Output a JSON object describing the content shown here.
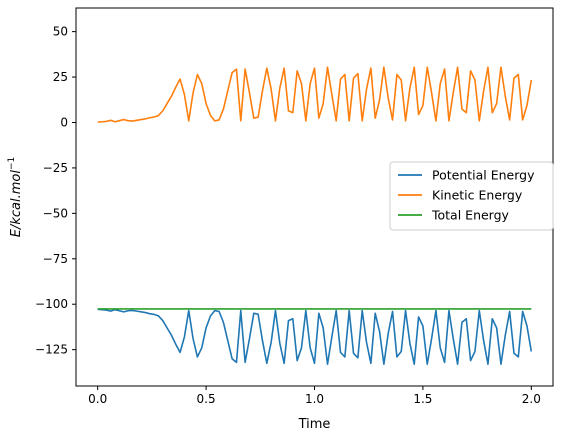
{
  "chart_data": {
    "type": "line",
    "title": "",
    "xlabel": "Time",
    "ylabel": "E/kcal.mol",
    "ylabel_superscript": "−1",
    "xlim": [
      -0.1,
      2.1
    ],
    "ylim": [
      -145,
      63
    ],
    "xticks": [
      0.0,
      0.5,
      1.0,
      1.5,
      2.0
    ],
    "xtick_labels": [
      "0.0",
      "0.5",
      "1.0",
      "1.5",
      "2.0"
    ],
    "yticks": [
      50,
      25,
      0,
      -25,
      -50,
      -75,
      -100,
      -125
    ],
    "ytick_labels": [
      "50",
      "25",
      "0",
      "−25",
      "−50",
      "−75",
      "−100",
      "−125"
    ],
    "grid": false,
    "legend_position": "center-right",
    "series": [
      {
        "name": "Potential Energy",
        "color": "#1f77b4",
        "x": [
          0.0,
          0.02,
          0.04,
          0.06,
          0.08,
          0.1,
          0.12,
          0.14,
          0.16,
          0.18,
          0.2,
          0.22,
          0.24,
          0.26,
          0.28,
          0.3,
          0.32,
          0.34,
          0.36,
          0.38,
          0.4,
          0.42,
          0.44,
          0.46,
          0.48,
          0.5,
          0.52,
          0.54,
          0.56,
          0.58,
          0.6,
          0.62,
          0.64,
          0.66,
          0.68,
          0.7,
          0.72,
          0.74,
          0.76,
          0.78,
          0.8,
          0.82,
          0.84,
          0.86,
          0.88,
          0.9,
          0.92,
          0.94,
          0.96,
          0.98,
          1.0,
          1.02,
          1.04,
          1.06,
          1.08,
          1.1,
          1.12,
          1.14,
          1.16,
          1.18,
          1.2,
          1.22,
          1.24,
          1.26,
          1.28,
          1.3,
          1.32,
          1.34,
          1.36,
          1.38,
          1.4,
          1.42,
          1.44,
          1.46,
          1.48,
          1.5,
          1.52,
          1.54,
          1.56,
          1.58,
          1.6,
          1.62,
          1.64,
          1.66,
          1.68,
          1.7,
          1.72,
          1.74,
          1.76,
          1.78,
          1.8,
          1.82,
          1.84,
          1.86,
          1.88,
          1.9,
          1.92,
          1.94,
          1.96,
          1.98,
          2.0
        ],
        "y": [
          -102.8,
          -103.0,
          -103.2,
          -103.8,
          -103.0,
          -103.6,
          -104.2,
          -103.6,
          -103.4,
          -103.8,
          -104.2,
          -104.6,
          -105.2,
          -105.6,
          -106.4,
          -109.0,
          -113.0,
          -117.0,
          -122.0,
          -126.5,
          -118.0,
          -103.5,
          -119.0,
          -129.0,
          -124.0,
          -113.0,
          -106.5,
          -103.5,
          -104.0,
          -110.0,
          -120.0,
          -130.0,
          -132.0,
          -103.5,
          -132.0,
          -119.0,
          -105.0,
          -105.5,
          -120.0,
          -132.5,
          -121.0,
          -103.5,
          -121.5,
          -132.5,
          -109.0,
          -108.0,
          -131.0,
          -124.0,
          -103.5,
          -124.0,
          -132.5,
          -105.0,
          -113.0,
          -133.0,
          -118.0,
          -103.5,
          -126.5,
          -129.0,
          -103.5,
          -127.0,
          -129.5,
          -103.5,
          -121.0,
          -132.5,
          -105.0,
          -115.0,
          -133.0,
          -116.0,
          -104.0,
          -129.0,
          -126.0,
          -103.5,
          -121.5,
          -133.0,
          -107.0,
          -112.0,
          -133.0,
          -119.0,
          -103.5,
          -124.0,
          -132.0,
          -103.5,
          -119.0,
          -133.0,
          -110.0,
          -108.0,
          -131.0,
          -126.0,
          -103.5,
          -120.0,
          -133.0,
          -108.0,
          -113.0,
          -133.0,
          -117.0,
          -104.0,
          -127.0,
          -129.0,
          -104.0,
          -112.0,
          -126.0
        ]
      },
      {
        "name": "Kinetic Energy",
        "color": "#ff7f0e",
        "x": [
          0.0,
          0.02,
          0.04,
          0.06,
          0.08,
          0.1,
          0.12,
          0.14,
          0.16,
          0.18,
          0.2,
          0.22,
          0.24,
          0.26,
          0.28,
          0.3,
          0.32,
          0.34,
          0.36,
          0.38,
          0.4,
          0.42,
          0.44,
          0.46,
          0.48,
          0.5,
          0.52,
          0.54,
          0.56,
          0.58,
          0.6,
          0.62,
          0.64,
          0.66,
          0.68,
          0.7,
          0.72,
          0.74,
          0.76,
          0.78,
          0.8,
          0.82,
          0.84,
          0.86,
          0.88,
          0.9,
          0.92,
          0.94,
          0.96,
          0.98,
          1.0,
          1.02,
          1.04,
          1.06,
          1.08,
          1.1,
          1.12,
          1.14,
          1.16,
          1.18,
          1.2,
          1.22,
          1.24,
          1.26,
          1.28,
          1.3,
          1.32,
          1.34,
          1.36,
          1.38,
          1.4,
          1.42,
          1.44,
          1.46,
          1.48,
          1.5,
          1.52,
          1.54,
          1.56,
          1.58,
          1.6,
          1.62,
          1.64,
          1.66,
          1.68,
          1.7,
          1.72,
          1.74,
          1.76,
          1.78,
          1.8,
          1.82,
          1.84,
          1.86,
          1.88,
          1.9,
          1.92,
          1.94,
          1.96,
          1.98,
          2.0
        ],
        "y": [
          0.2,
          0.4,
          0.6,
          1.2,
          0.4,
          1.0,
          1.6,
          1.0,
          0.8,
          1.2,
          1.6,
          2.0,
          2.6,
          3.0,
          3.8,
          6.4,
          10.4,
          14.4,
          19.4,
          23.9,
          15.4,
          0.9,
          16.4,
          26.4,
          21.4,
          10.4,
          3.9,
          0.9,
          1.4,
          7.4,
          17.4,
          27.4,
          29.4,
          0.9,
          29.4,
          16.4,
          2.4,
          2.9,
          17.4,
          29.9,
          18.4,
          0.9,
          18.9,
          29.9,
          6.4,
          5.4,
          28.4,
          21.4,
          0.9,
          21.4,
          29.9,
          2.4,
          10.4,
          30.4,
          15.4,
          0.9,
          23.9,
          26.4,
          0.9,
          24.4,
          26.9,
          0.9,
          18.4,
          29.9,
          2.4,
          12.4,
          30.4,
          13.4,
          1.4,
          26.4,
          23.4,
          0.9,
          18.9,
          30.4,
          4.4,
          9.4,
          30.4,
          16.4,
          0.9,
          21.4,
          29.4,
          0.9,
          16.4,
          30.4,
          7.4,
          5.4,
          28.4,
          23.4,
          0.9,
          17.4,
          30.4,
          5.4,
          10.4,
          30.4,
          14.4,
          1.4,
          24.4,
          26.4,
          1.4,
          9.4,
          23.4
        ]
      },
      {
        "name": "Total Energy",
        "color": "#2ca02c",
        "x": [
          0.0,
          0.5,
          1.0,
          1.5,
          2.0
        ],
        "y": [
          -102.6,
          -102.6,
          -102.6,
          -102.6,
          -102.6
        ]
      }
    ]
  }
}
